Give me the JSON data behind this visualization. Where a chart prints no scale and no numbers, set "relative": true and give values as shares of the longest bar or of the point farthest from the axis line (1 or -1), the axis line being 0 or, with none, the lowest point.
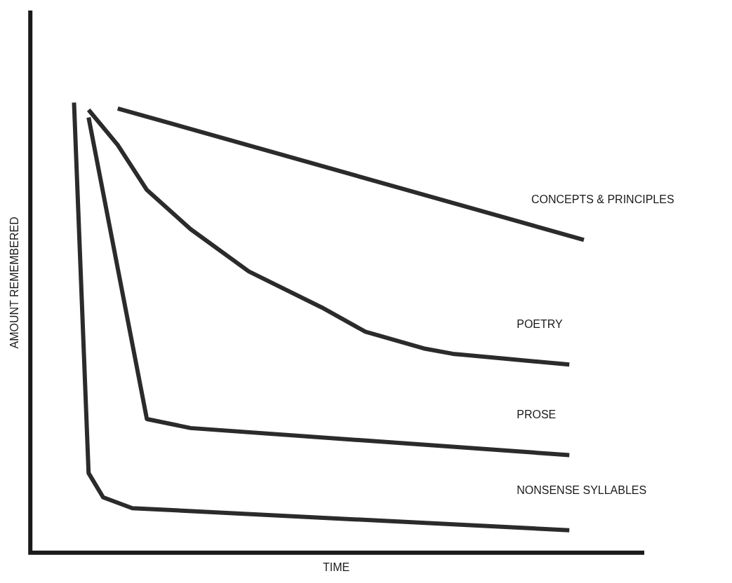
{
  "chart_data": {
    "type": "line",
    "relative": true,
    "xlabel": "TIME",
    "ylabel": "AMOUNT REMEMBERED",
    "grid": false,
    "legend": false,
    "marker": "none",
    "line_style": "solid",
    "categories": [
      null,
      null,
      null,
      null,
      null,
      null,
      null,
      null,
      null,
      null,
      null,
      null,
      null,
      null,
      null,
      null,
      null,
      null,
      null,
      null,
      null,
      null,
      null,
      null,
      null,
      null,
      null,
      null,
      null,
      null,
      null,
      null,
      null,
      null,
      null,
      null,
      null,
      null,
      null,
      null,
      null,
      null,
      null
    ],
    "series": [
      {
        "name": "CONCEPTS & PRINCIPLES",
        "color": "#2b2b2b",
        "values": [
          null,
          null,
          null,
          null,
          null,
          null,
          0.987,
          null,
          null,
          null,
          null,
          null,
          null,
          null,
          null,
          null,
          null,
          null,
          null,
          null,
          null,
          null,
          null,
          null,
          null,
          null,
          null,
          null,
          null,
          null,
          null,
          null,
          null,
          null,
          null,
          null,
          null,
          null,
          0.695,
          null,
          null,
          null,
          null
        ]
      },
      {
        "name": "POETRY",
        "color": "#2b2b2b",
        "values": [
          null,
          null,
          null,
          null,
          0.984,
          null,
          0.906,
          null,
          0.806,
          null,
          null,
          0.719,
          null,
          null,
          null,
          0.625,
          null,
          null,
          null,
          null,
          0.545,
          null,
          null,
          0.491,
          null,
          null,
          null,
          0.454,
          null,
          0.442,
          null,
          null,
          null,
          null,
          null,
          null,
          null,
          0.418,
          null,
          null,
          null,
          null,
          null
        ]
      },
      {
        "name": "PROSE",
        "color": "#2b2b2b",
        "values": [
          null,
          null,
          null,
          null,
          0.967,
          null,
          null,
          null,
          0.297,
          null,
          null,
          0.277,
          null,
          null,
          null,
          null,
          null,
          null,
          null,
          null,
          null,
          null,
          null,
          null,
          null,
          null,
          null,
          null,
          null,
          null,
          null,
          null,
          null,
          null,
          null,
          null,
          null,
          0.217,
          null,
          null,
          null,
          null,
          null
        ]
      },
      {
        "name": "NONSENSE SYLLABLES",
        "color": "#2b2b2b",
        "values": [
          null,
          null,
          null,
          1.0,
          0.177,
          0.123,
          null,
          0.099,
          null,
          null,
          null,
          null,
          null,
          null,
          null,
          null,
          null,
          null,
          null,
          null,
          null,
          null,
          null,
          null,
          null,
          null,
          null,
          null,
          null,
          null,
          null,
          null,
          null,
          null,
          null,
          null,
          null,
          0.05,
          null,
          null,
          null,
          null,
          null
        ]
      }
    ]
  }
}
